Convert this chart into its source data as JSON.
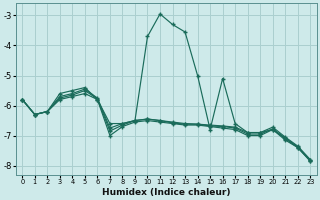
{
  "xlabel": "Humidex (Indice chaleur)",
  "bg_color": "#ceeaea",
  "line_color": "#1a6b5a",
  "grid_color": "#aacfcf",
  "xlim": [
    -0.5,
    23.5
  ],
  "ylim": [
    -8.3,
    -2.6
  ],
  "yticks": [
    -8,
    -7,
    -6,
    -5,
    -4,
    -3
  ],
  "xticks": [
    0,
    1,
    2,
    3,
    4,
    5,
    6,
    7,
    8,
    9,
    10,
    11,
    12,
    13,
    14,
    15,
    16,
    17,
    18,
    19,
    20,
    21,
    22,
    23
  ],
  "series": [
    {
      "x": [
        0,
        1,
        2,
        3,
        4,
        5,
        6,
        7,
        8,
        9,
        10,
        11,
        12,
        13,
        14,
        15,
        16,
        17,
        18,
        19,
        20,
        21,
        22,
        23
      ],
      "y": [
        -5.8,
        -6.3,
        -6.2,
        -5.6,
        -5.5,
        -5.4,
        -5.8,
        -6.6,
        -6.6,
        -6.5,
        -3.7,
        -2.95,
        -3.3,
        -3.55,
        -5.0,
        -6.8,
        -5.1,
        -6.6,
        -6.9,
        -6.9,
        -6.8,
        -7.15,
        -7.4,
        -7.85
      ]
    },
    {
      "x": [
        0,
        1,
        2,
        3,
        4,
        5,
        6,
        7,
        8,
        9,
        10,
        11,
        12,
        13,
        14,
        15,
        16,
        17,
        18,
        19,
        20,
        21,
        22,
        23
      ],
      "y": [
        -5.8,
        -6.3,
        -6.2,
        -5.8,
        -5.7,
        -5.6,
        -5.8,
        -7.0,
        -6.7,
        -6.55,
        -6.5,
        -6.55,
        -6.6,
        -6.65,
        -6.65,
        -6.7,
        -6.75,
        -6.8,
        -7.0,
        -7.0,
        -6.8,
        -7.1,
        -7.4,
        -7.85
      ]
    },
    {
      "x": [
        0,
        1,
        2,
        3,
        4,
        5,
        6,
        7,
        8,
        9,
        10,
        11,
        12,
        13,
        14,
        15,
        16,
        17,
        18,
        19,
        20,
        21,
        22,
        23
      ],
      "y": [
        -5.8,
        -6.3,
        -6.2,
        -5.75,
        -5.65,
        -5.5,
        -5.78,
        -6.85,
        -6.65,
        -6.5,
        -6.45,
        -6.5,
        -6.58,
        -6.62,
        -6.62,
        -6.68,
        -6.7,
        -6.75,
        -6.95,
        -6.95,
        -6.78,
        -7.08,
        -7.38,
        -7.82
      ]
    },
    {
      "x": [
        0,
        1,
        2,
        3,
        4,
        5,
        6,
        7,
        8,
        9,
        10,
        11,
        12,
        13,
        14,
        15,
        16,
        17,
        18,
        19,
        20,
        21,
        22,
        23
      ],
      "y": [
        -5.8,
        -6.3,
        -6.2,
        -5.7,
        -5.6,
        -5.45,
        -5.75,
        -6.75,
        -6.6,
        -6.5,
        -6.45,
        -6.5,
        -6.55,
        -6.6,
        -6.62,
        -6.65,
        -6.68,
        -6.72,
        -6.9,
        -6.9,
        -6.72,
        -7.05,
        -7.35,
        -7.8
      ]
    }
  ]
}
